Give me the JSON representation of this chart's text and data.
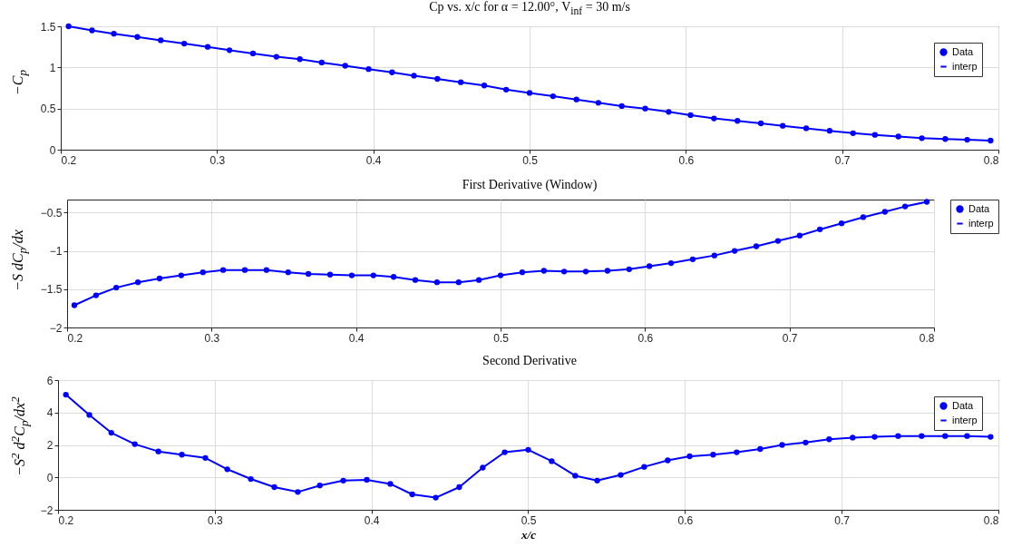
{
  "chart_data": [
    {
      "type": "line",
      "title": "Cp vs. x/c for α = 12.00°, V$_{inf}$ = 30 m/s",
      "ylabel": "−C$_{p}$",
      "xlim": [
        0.2,
        0.8
      ],
      "xticks": [
        0.2,
        0.3,
        0.4,
        0.5,
        0.6,
        0.7,
        0.8
      ],
      "ylim": [
        0,
        1.5
      ],
      "yticks": [
        0,
        0.5,
        1,
        1.5
      ],
      "grid": true,
      "legend": "top right",
      "x": [
        0.205,
        0.22,
        0.234,
        0.249,
        0.264,
        0.279,
        0.294,
        0.308,
        0.323,
        0.338,
        0.353,
        0.367,
        0.382,
        0.397,
        0.412,
        0.426,
        0.441,
        0.456,
        0.471,
        0.485,
        0.5,
        0.515,
        0.53,
        0.544,
        0.559,
        0.574,
        0.589,
        0.603,
        0.618,
        0.633,
        0.648,
        0.662,
        0.677,
        0.692,
        0.707,
        0.721,
        0.736,
        0.751,
        0.766,
        0.78,
        0.795
      ],
      "series": [
        {
          "name": "Data",
          "type": "scatter",
          "marker": "circle",
          "color": "#0000ff",
          "values": [
            1.5,
            1.45,
            1.41,
            1.37,
            1.33,
            1.29,
            1.25,
            1.21,
            1.17,
            1.13,
            1.1,
            1.06,
            1.02,
            0.98,
            0.94,
            0.9,
            0.86,
            0.82,
            0.78,
            0.73,
            0.69,
            0.65,
            0.61,
            0.57,
            0.53,
            0.5,
            0.46,
            0.42,
            0.38,
            0.35,
            0.32,
            0.29,
            0.26,
            0.23,
            0.2,
            0.18,
            0.16,
            0.14,
            0.13,
            0.12,
            0.11
          ]
        },
        {
          "name": "interp",
          "color": "#0000ff",
          "values": [
            1.5,
            1.45,
            1.41,
            1.37,
            1.33,
            1.29,
            1.25,
            1.21,
            1.17,
            1.13,
            1.1,
            1.06,
            1.02,
            0.98,
            0.94,
            0.9,
            0.86,
            0.82,
            0.78,
            0.73,
            0.69,
            0.65,
            0.61,
            0.57,
            0.53,
            0.5,
            0.46,
            0.42,
            0.38,
            0.35,
            0.32,
            0.29,
            0.26,
            0.23,
            0.2,
            0.18,
            0.16,
            0.14,
            0.13,
            0.12,
            0.11
          ]
        }
      ]
    },
    {
      "type": "line",
      "title": "First Derivative (Window)",
      "ylabel": "−S dC$_{p}$/dx",
      "xlim": [
        0.2,
        0.8
      ],
      "xticks": [
        0.2,
        0.3,
        0.4,
        0.5,
        0.6,
        0.7,
        0.8
      ],
      "ylim": [
        -2,
        -0.33
      ],
      "yticks": [
        -2,
        -1.5,
        -1,
        -0.5
      ],
      "grid": true,
      "legend": "right",
      "x": [
        0.205,
        0.22,
        0.234,
        0.249,
        0.264,
        0.279,
        0.294,
        0.308,
        0.323,
        0.338,
        0.353,
        0.367,
        0.382,
        0.397,
        0.412,
        0.426,
        0.441,
        0.456,
        0.471,
        0.485,
        0.5,
        0.515,
        0.53,
        0.544,
        0.559,
        0.574,
        0.589,
        0.603,
        0.618,
        0.633,
        0.648,
        0.662,
        0.677,
        0.692,
        0.707,
        0.721,
        0.736,
        0.751,
        0.766,
        0.78,
        0.795
      ],
      "series": [
        {
          "name": "Data",
          "type": "scatter",
          "marker": "circle",
          "color": "#0000ff",
          "values": [
            -1.71,
            -1.58,
            -1.48,
            -1.41,
            -1.36,
            -1.32,
            -1.28,
            -1.25,
            -1.25,
            -1.25,
            -1.28,
            -1.3,
            -1.31,
            -1.32,
            -1.32,
            -1.34,
            -1.38,
            -1.41,
            -1.41,
            -1.38,
            -1.32,
            -1.28,
            -1.26,
            -1.27,
            -1.27,
            -1.26,
            -1.24,
            -1.2,
            -1.16,
            -1.11,
            -1.06,
            -1.0,
            -0.94,
            -0.87,
            -0.8,
            -0.72,
            -0.64,
            -0.56,
            -0.49,
            -0.42,
            -0.36
          ]
        },
        {
          "name": "interp",
          "color": "#0000ff",
          "values": [
            -1.71,
            -1.58,
            -1.48,
            -1.41,
            -1.36,
            -1.32,
            -1.28,
            -1.25,
            -1.25,
            -1.25,
            -1.28,
            -1.3,
            -1.31,
            -1.32,
            -1.32,
            -1.34,
            -1.38,
            -1.41,
            -1.41,
            -1.38,
            -1.32,
            -1.28,
            -1.26,
            -1.27,
            -1.27,
            -1.26,
            -1.24,
            -1.2,
            -1.16,
            -1.11,
            -1.06,
            -1.0,
            -0.94,
            -0.87,
            -0.8,
            -0.72,
            -0.64,
            -0.56,
            -0.49,
            -0.42,
            -0.36
          ]
        }
      ]
    },
    {
      "type": "line",
      "title": "Second Derivative",
      "ylabel": "−S$^{2}$ d$^{2}$C$_{p}$/dx$^{2}$",
      "xlabel": "x/c",
      "xlim": [
        0.2,
        0.8
      ],
      "xticks": [
        0.2,
        0.3,
        0.4,
        0.5,
        0.6,
        0.7,
        0.8
      ],
      "ylim": [
        -2,
        6
      ],
      "yticks": [
        -2,
        0,
        2,
        4,
        6
      ],
      "grid": true,
      "legend": "top right",
      "x": [
        0.205,
        0.22,
        0.234,
        0.249,
        0.264,
        0.279,
        0.294,
        0.308,
        0.323,
        0.338,
        0.353,
        0.367,
        0.382,
        0.397,
        0.412,
        0.426,
        0.441,
        0.456,
        0.471,
        0.485,
        0.5,
        0.515,
        0.53,
        0.544,
        0.559,
        0.574,
        0.589,
        0.603,
        0.618,
        0.633,
        0.648,
        0.662,
        0.677,
        0.692,
        0.707,
        0.721,
        0.736,
        0.751,
        0.766,
        0.78,
        0.795
      ],
      "series": [
        {
          "name": "Data",
          "type": "scatter",
          "marker": "circle",
          "color": "#0000ff",
          "values": [
            5.1,
            3.85,
            2.75,
            2.05,
            1.6,
            1.4,
            1.2,
            0.5,
            -0.1,
            -0.6,
            -0.9,
            -0.5,
            -0.2,
            -0.15,
            -0.4,
            -1.05,
            -1.25,
            -0.6,
            0.6,
            1.55,
            1.7,
            1.0,
            0.1,
            -0.2,
            0.15,
            0.65,
            1.05,
            1.3,
            1.4,
            1.55,
            1.75,
            2.0,
            2.15,
            2.35,
            2.45,
            2.5,
            2.55,
            2.55,
            2.55,
            2.55,
            2.5
          ]
        },
        {
          "name": "interp",
          "color": "#0000ff",
          "values": [
            5.1,
            3.85,
            2.75,
            2.05,
            1.6,
            1.4,
            1.2,
            0.5,
            -0.1,
            -0.6,
            -0.9,
            -0.5,
            -0.2,
            -0.15,
            -0.4,
            -1.05,
            -1.25,
            -0.6,
            0.6,
            1.55,
            1.7,
            1.0,
            0.1,
            -0.2,
            0.15,
            0.65,
            1.05,
            1.3,
            1.4,
            1.55,
            1.75,
            2.0,
            2.15,
            2.35,
            2.45,
            2.5,
            2.55,
            2.55,
            2.55,
            2.55,
            2.5
          ]
        }
      ]
    }
  ]
}
